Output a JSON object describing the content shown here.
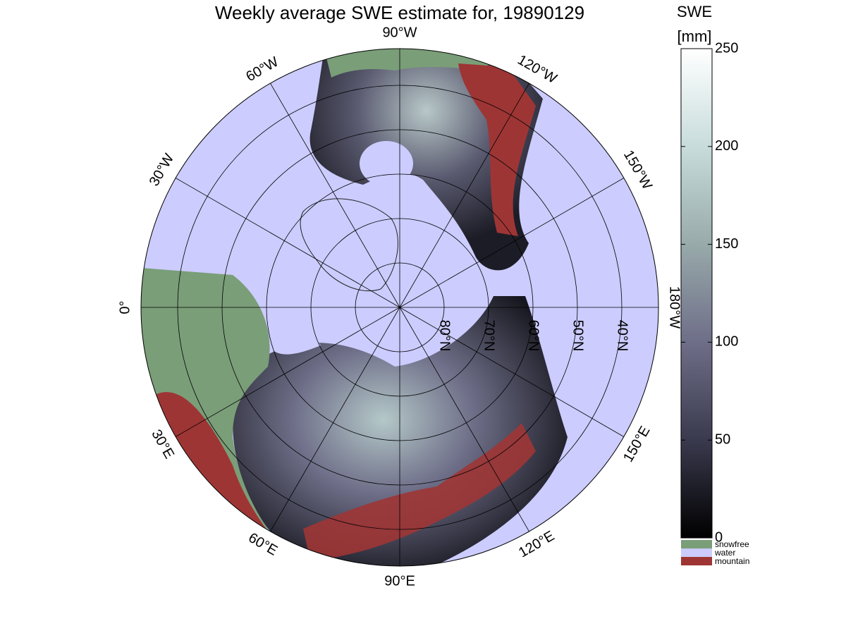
{
  "title": "Weekly average SWE estimate for, 19890129",
  "colorbar": {
    "label": "SWE",
    "unit": "[mm]",
    "lim": [
      0,
      250
    ],
    "ticks": [
      0,
      50,
      100,
      150,
      200,
      250
    ],
    "colors": [
      "#000000",
      "#3a3a4e",
      "#6e6e88",
      "#98aaaa",
      "#c8dcdc",
      "#ffffff"
    ]
  },
  "legend": [
    {
      "label": "snowfree",
      "color": "#7a9e78"
    },
    {
      "label": "water",
      "color": "#ccccff"
    },
    {
      "label": "mountain",
      "color": "#9e3535"
    }
  ],
  "map": {
    "meridians": [
      {
        "value": 0,
        "label": "0°"
      },
      {
        "value": 30,
        "label": "30°E"
      },
      {
        "value": 60,
        "label": "60°E"
      },
      {
        "value": 90,
        "label": "90°E"
      },
      {
        "value": 120,
        "label": "120°E"
      },
      {
        "value": 150,
        "label": "150°E"
      },
      {
        "value": 180,
        "label": "180°W"
      },
      {
        "value": -150,
        "label": "150°W"
      },
      {
        "value": -120,
        "label": "120°W"
      },
      {
        "value": -90,
        "label": "90°W"
      },
      {
        "value": -60,
        "label": "60°W"
      },
      {
        "value": -30,
        "label": "30°W"
      }
    ],
    "parallels": [
      {
        "value": 80,
        "label": "80°N"
      },
      {
        "value": 70,
        "label": "70°N"
      },
      {
        "value": 60,
        "label": "60°N"
      },
      {
        "value": 50,
        "label": "50°N"
      },
      {
        "value": 40,
        "label": "40°N"
      }
    ]
  }
}
